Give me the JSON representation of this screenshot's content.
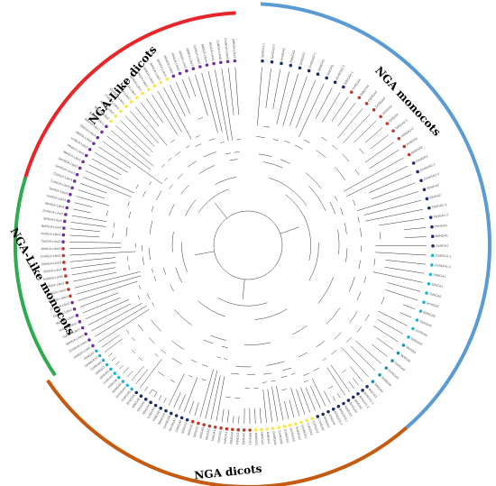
{
  "colors": {
    "ngaLikeDicots": "#e8262a",
    "ngaMonocots": "#5b9bd5",
    "ngaDicots": "#c55a11",
    "ngaLikeMonocots": "#2eab4f",
    "purpleMarker": "#7030a0",
    "navyMarker": "#1f2d6b",
    "redMarker": "#c0392b",
    "yellowMarker": "#f7e84a",
    "cyanMarker": "#1fb5d6",
    "tealMarker": "#1a8fa8"
  },
  "clades": [
    {
      "id": "nga-like-dicots",
      "label": "NGA-Like dicots",
      "color": "#e8262a"
    },
    {
      "id": "nga-monocots",
      "label": "NGA monocots",
      "color": "#5b9bd5"
    },
    {
      "id": "nga-dicots",
      "label": "NGA dicots",
      "color": "#c55a11"
    },
    {
      "id": "nga-like-monocots",
      "label": "NGA-Like monocots",
      "color": "#2eab4f"
    }
  ],
  "leaves": {
    "nga_like_dicots": [
      "CsNGA-Like4",
      "CsNGA-Like3",
      "GmNGA-Like3",
      "GmNGA-Like2",
      "MtNGA-Like1",
      "PtNGA-Like3",
      "VvNGA-Like2",
      "SlNGA-Like4",
      "StNGA-Like3",
      "AtNGA-Like1",
      "BrNGA-Like1",
      "BrNGA-Like2",
      "AtNGA-Like2",
      "CsNGA-Like1",
      "GmNGA-Like1",
      "PtNGA-Like2",
      "VvNGA-Like1",
      "SlNGA-Like1",
      "StNGA-Like1",
      "AtNGA-Like3",
      "BrNGA-Like3",
      "BrNGA-Like4",
      "MtNGA-Like2",
      "PtNGA-Like1",
      "SlNGA-Like2",
      "StNGA-Like2",
      "CsNGA-Like2",
      "AtNGA-Like4",
      "BrNGA-Like5",
      "CsNGA-Like5",
      "GmNGA-Like4",
      "MtNGA-Like3"
    ],
    "nga_like_monocots": [
      "OsNGA-Like1",
      "ZmNGA-Like1",
      "SbNGA-Like1",
      "TaNGA-Like1",
      "HvNGA-Like1",
      "BdNGA-Like1",
      "OsNGA-Like2",
      "ZmNGA-Like2",
      "SbNGA-Like2",
      "TaNGA-Like2",
      "HvNGA-Like2",
      "BdNGA-Like2",
      "SiNGA-Like1",
      "OsNGA-Like3",
      "ZmNGA-Like3",
      "SbNGA-Like3",
      "TaNGA-Like3",
      "HvNGA-Like3",
      "BdNGA-Like3",
      "SiNGA-Like2",
      "ZmNGA-Like4",
      "SbNGA-Like4",
      "OsNGA-Like4",
      "TaNGA-Like4"
    ],
    "nga_monocots": [
      "TaNGA3-1",
      "TaNGA3-2",
      "HvNGA3",
      "BdNGA3",
      "OsNGA3",
      "ZmNGA3-1",
      "SbNGA3",
      "SiNGA3",
      "ZmNGA3-2",
      "TaNGA4-1",
      "HvNGA4",
      "BdNGA4",
      "OsNGA4",
      "ZmNGA4",
      "SbNGA4",
      "SiNGA4",
      "TaNGA2-1",
      "TaNGA2-2",
      "HvNGA2",
      "BdNGA2",
      "OsNGA2",
      "ZmNGA2-1",
      "ZmNGA2-2",
      "SbNGA2",
      "SiNGA2",
      "TaNGA1-1",
      "TaNGA1-2",
      "HvNGA1",
      "BdNGA1",
      "OsNGA1",
      "ZmNGA1-1",
      "ZmNGA1-2",
      "SbNGA1",
      "SiNGA1",
      "TaNGA5",
      "HvNGA5",
      "BdNGA5",
      "OsNGA5",
      "ZmNGA5",
      "SbNGA5",
      "SiNGA5",
      "TaNGA6",
      "OsNGA6",
      "ZmNGA6",
      "SbNGA6",
      "SiNGA6"
    ],
    "nga_dicots": [
      "AtNGA1",
      "BrNGA1-1",
      "BrNGA1-2",
      "AtNGA2",
      "BrNGA2",
      "AtNGA3",
      "BrNGA3-1",
      "BrNGA3-2",
      "AtNGA4",
      "BrNGA4",
      "CsNGA1",
      "CsNGA2",
      "CsNGA3",
      "GmNGA1",
      "GmNGA2",
      "GmNGA3",
      "GmNGA4",
      "GmNGA5",
      "GmNGA6",
      "MtNGA1",
      "MtNGA2",
      "MtNGA3",
      "PtNGA1",
      "PtNGA2",
      "PtNGA3",
      "PtNGA4",
      "VvNGA1",
      "VvNGA2",
      "SlNGA1",
      "SlNGA2",
      "SlNGA3",
      "StNGA1",
      "StNGA2",
      "StNGA3",
      "CsNGA4",
      "GmNGA7",
      "GmNGA8",
      "MtNGA4",
      "PtNGA5",
      "VvNGA3",
      "SlNGA4",
      "StNGA4",
      "AtNGA5",
      "BrNGA5",
      "CsNGA5",
      "GmNGA9",
      "MtNGA5",
      "PtNGA6",
      "VvNGA4",
      "SlNGA5",
      "StNGA5",
      "CsNGA6",
      "GmNGA10",
      "PtNGA7"
    ]
  }
}
